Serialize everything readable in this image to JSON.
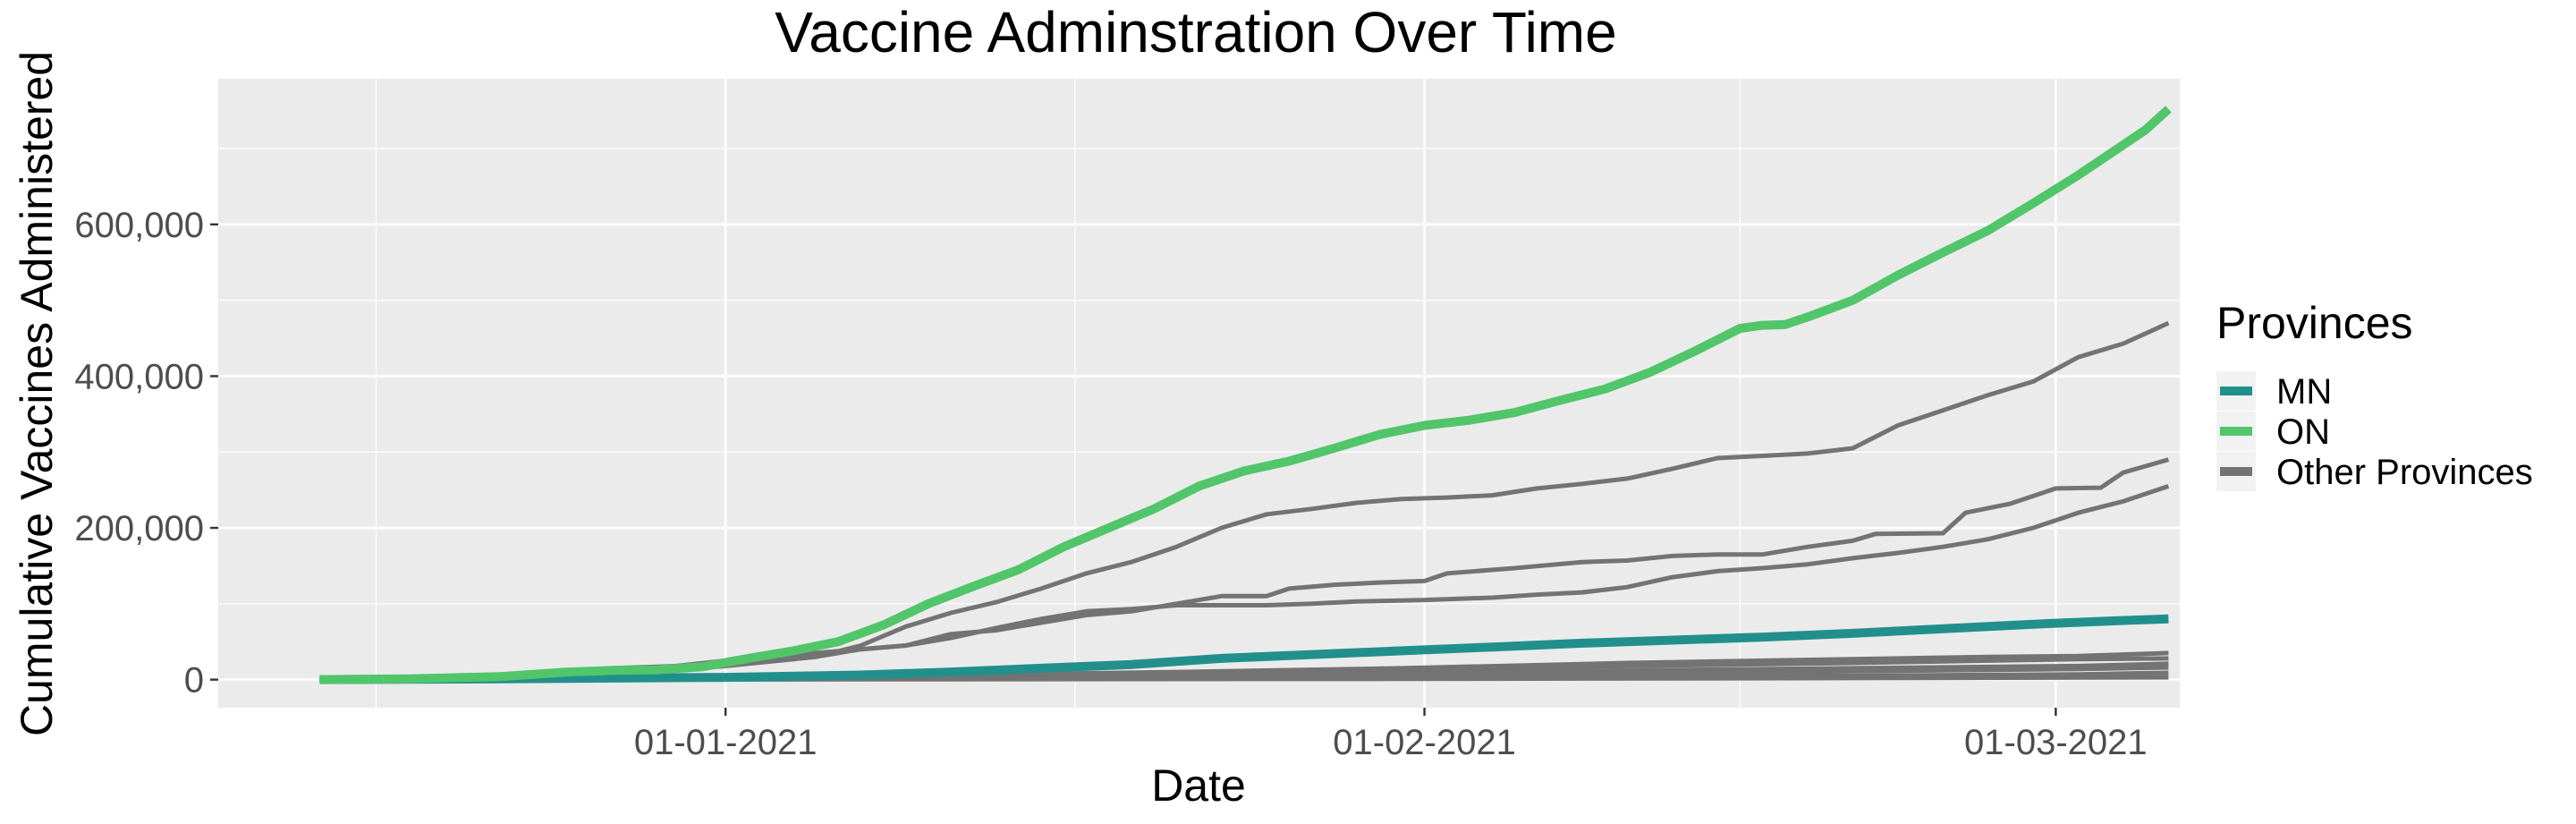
{
  "chart_data": {
    "type": "line",
    "title": "Vaccine Adminstration Over Time",
    "xlabel": "Date",
    "ylabel": "Cumulative Vaccines Administered",
    "x_ticks": [
      {
        "label": "01-01-2021",
        "day": 0
      },
      {
        "label": "01-02-2021",
        "day": 31
      },
      {
        "label": "01-03-2021",
        "day": 59
      }
    ],
    "y_ticks": [
      {
        "label": "0",
        "value": 0
      },
      {
        "label": "200,000",
        "value": 200000
      },
      {
        "label": "400,000",
        "value": 400000
      },
      {
        "label": "600,000",
        "value": 600000
      }
    ],
    "xlim": [
      -22.5,
      64.5
    ],
    "ylim": [
      -37000,
      792000
    ],
    "grid": true,
    "legend_title": "Provinces",
    "legend_position": "right",
    "legend": [
      {
        "label": "MN",
        "color": "#21908c"
      },
      {
        "label": "ON",
        "color": "#51c56a"
      },
      {
        "label": "Other Provinces",
        "color": "#737373"
      }
    ],
    "series": [
      {
        "name": "ON",
        "color": "#51c56a",
        "points": [
          [
            -18,
            0
          ],
          [
            -14,
            1000
          ],
          [
            -10,
            4000
          ],
          [
            -7,
            10000
          ],
          [
            -5,
            12000
          ],
          [
            -3,
            13000
          ],
          [
            -1,
            17000
          ],
          [
            1,
            28000
          ],
          [
            3,
            38000
          ],
          [
            5,
            50000
          ],
          [
            7,
            72000
          ],
          [
            9,
            100000
          ],
          [
            11,
            123000
          ],
          [
            13,
            145000
          ],
          [
            15,
            175000
          ],
          [
            17,
            200000
          ],
          [
            19,
            225000
          ],
          [
            21,
            255000
          ],
          [
            23,
            275000
          ],
          [
            25,
            288000
          ],
          [
            27,
            305000
          ],
          [
            29,
            323000
          ],
          [
            31,
            335000
          ],
          [
            33,
            342000
          ],
          [
            35,
            352000
          ],
          [
            37,
            368000
          ],
          [
            39,
            383000
          ],
          [
            41,
            405000
          ],
          [
            43,
            433000
          ],
          [
            45,
            463000
          ],
          [
            46,
            467000
          ],
          [
            47,
            468000
          ],
          [
            48,
            478000
          ],
          [
            50,
            500000
          ],
          [
            52,
            533000
          ],
          [
            54,
            563000
          ],
          [
            56,
            592000
          ],
          [
            58,
            628000
          ],
          [
            60,
            665000
          ],
          [
            62,
            705000
          ],
          [
            63,
            725000
          ],
          [
            64,
            752000
          ]
        ]
      },
      {
        "name": "MN",
        "color": "#21908c",
        "points": [
          [
            -18,
            0
          ],
          [
            -10,
            1000
          ],
          [
            0,
            3000
          ],
          [
            6,
            6000
          ],
          [
            10,
            10000
          ],
          [
            14,
            15000
          ],
          [
            18,
            20000
          ],
          [
            22,
            28000
          ],
          [
            26,
            33000
          ],
          [
            30,
            38000
          ],
          [
            34,
            43000
          ],
          [
            38,
            48000
          ],
          [
            42,
            52000
          ],
          [
            46,
            56000
          ],
          [
            50,
            61000
          ],
          [
            54,
            67000
          ],
          [
            58,
            73000
          ],
          [
            62,
            78000
          ],
          [
            64,
            80000
          ]
        ]
      },
      {
        "name": "Other Provinces",
        "color": "#737373",
        "points": [
          [
            -18,
            0
          ],
          [
            -12,
            3000
          ],
          [
            -8,
            10000
          ],
          [
            -5,
            15000
          ],
          [
            -2,
            18000
          ],
          [
            1,
            22000
          ],
          [
            4,
            30000
          ],
          [
            6,
            45000
          ],
          [
            8,
            70000
          ],
          [
            10,
            88000
          ],
          [
            12,
            102000
          ],
          [
            14,
            120000
          ],
          [
            16,
            140000
          ],
          [
            18,
            155000
          ],
          [
            20,
            175000
          ],
          [
            22,
            200000
          ],
          [
            24,
            218000
          ],
          [
            26,
            225000
          ],
          [
            28,
            233000
          ],
          [
            30,
            238000
          ],
          [
            32,
            240000
          ],
          [
            34,
            243000
          ],
          [
            36,
            252000
          ],
          [
            38,
            258000
          ],
          [
            40,
            265000
          ],
          [
            42,
            278000
          ],
          [
            44,
            292000
          ],
          [
            46,
            295000
          ],
          [
            48,
            298000
          ],
          [
            50,
            305000
          ],
          [
            52,
            335000
          ],
          [
            54,
            355000
          ],
          [
            56,
            375000
          ],
          [
            58,
            393000
          ],
          [
            60,
            425000
          ],
          [
            62,
            443000
          ],
          [
            64,
            470000
          ]
        ]
      },
      {
        "name": "Other Provinces",
        "color": "#737373",
        "points": [
          [
            -18,
            0
          ],
          [
            -10,
            2000
          ],
          [
            -4,
            12000
          ],
          [
            0,
            25000
          ],
          [
            4,
            35000
          ],
          [
            8,
            45000
          ],
          [
            10,
            60000
          ],
          [
            12,
            65000
          ],
          [
            14,
            75000
          ],
          [
            16,
            85000
          ],
          [
            18,
            90000
          ],
          [
            20,
            100000
          ],
          [
            22,
            110000
          ],
          [
            24,
            110000
          ],
          [
            25,
            120000
          ],
          [
            27,
            125000
          ],
          [
            29,
            128000
          ],
          [
            31,
            130000
          ],
          [
            32,
            140000
          ],
          [
            35,
            147000
          ],
          [
            38,
            155000
          ],
          [
            40,
            157000
          ],
          [
            42,
            163000
          ],
          [
            44,
            165000
          ],
          [
            46,
            165000
          ],
          [
            48,
            175000
          ],
          [
            50,
            183000
          ],
          [
            51,
            192000
          ],
          [
            54,
            193000
          ],
          [
            55,
            220000
          ],
          [
            57,
            232000
          ],
          [
            59,
            252000
          ],
          [
            61,
            253000
          ],
          [
            62,
            273000
          ],
          [
            64,
            290000
          ]
        ]
      },
      {
        "name": "Other Provinces",
        "color": "#737373",
        "points": [
          [
            -18,
            0
          ],
          [
            -10,
            1000
          ],
          [
            -4,
            8000
          ],
          [
            0,
            18000
          ],
          [
            4,
            30000
          ],
          [
            6,
            40000
          ],
          [
            8,
            45000
          ],
          [
            10,
            55000
          ],
          [
            12,
            68000
          ],
          [
            14,
            80000
          ],
          [
            16,
            90000
          ],
          [
            18,
            93000
          ],
          [
            20,
            98000
          ],
          [
            22,
            98000
          ],
          [
            24,
            98000
          ],
          [
            26,
            100000
          ],
          [
            28,
            103000
          ],
          [
            31,
            105000
          ],
          [
            34,
            108000
          ],
          [
            36,
            112000
          ],
          [
            38,
            115000
          ],
          [
            40,
            122000
          ],
          [
            42,
            135000
          ],
          [
            44,
            143000
          ],
          [
            46,
            147000
          ],
          [
            48,
            152000
          ],
          [
            50,
            160000
          ],
          [
            52,
            167000
          ],
          [
            54,
            175000
          ],
          [
            56,
            185000
          ],
          [
            58,
            200000
          ],
          [
            60,
            220000
          ],
          [
            62,
            235000
          ],
          [
            64,
            255000
          ]
        ]
      },
      {
        "name": "Other Provinces",
        "color": "#737373",
        "points": [
          [
            -18,
            0
          ],
          [
            -6,
            1000
          ],
          [
            0,
            3000
          ],
          [
            10,
            6000
          ],
          [
            20,
            10000
          ],
          [
            30,
            15000
          ],
          [
            40,
            22000
          ],
          [
            50,
            27000
          ],
          [
            56,
            30000
          ],
          [
            60,
            31000
          ],
          [
            64,
            35000
          ]
        ]
      },
      {
        "name": "Other Provinces",
        "color": "#737373",
        "points": [
          [
            -18,
            0
          ],
          [
            -6,
            1000
          ],
          [
            0,
            2000
          ],
          [
            10,
            5000
          ],
          [
            20,
            9000
          ],
          [
            30,
            14000
          ],
          [
            40,
            18000
          ],
          [
            50,
            22000
          ],
          [
            56,
            25000
          ],
          [
            60,
            27000
          ],
          [
            64,
            28000
          ]
        ]
      },
      {
        "name": "Other Provinces",
        "color": "#737373",
        "points": [
          [
            -18,
            0
          ],
          [
            0,
            1000
          ],
          [
            10,
            3000
          ],
          [
            20,
            6000
          ],
          [
            30,
            9000
          ],
          [
            40,
            12000
          ],
          [
            50,
            15000
          ],
          [
            60,
            18000
          ],
          [
            64,
            21000
          ]
        ]
      },
      {
        "name": "Other Provinces",
        "color": "#737373",
        "points": [
          [
            -18,
            0
          ],
          [
            0,
            500
          ],
          [
            10,
            2000
          ],
          [
            20,
            4000
          ],
          [
            30,
            6000
          ],
          [
            40,
            9000
          ],
          [
            50,
            11000
          ],
          [
            60,
            14000
          ],
          [
            64,
            16000
          ]
        ]
      },
      {
        "name": "Other Provinces",
        "color": "#737373",
        "points": [
          [
            -18,
            0
          ],
          [
            0,
            300
          ],
          [
            10,
            1000
          ],
          [
            20,
            2000
          ],
          [
            30,
            3000
          ],
          [
            40,
            4000
          ],
          [
            50,
            5000
          ],
          [
            60,
            7000
          ],
          [
            64,
            9000
          ]
        ]
      },
      {
        "name": "Other Provinces",
        "color": "#737373",
        "points": [
          [
            -18,
            0
          ],
          [
            10,
            500
          ],
          [
            30,
            1000
          ],
          [
            50,
            2000
          ],
          [
            64,
            3000
          ]
        ]
      }
    ]
  }
}
